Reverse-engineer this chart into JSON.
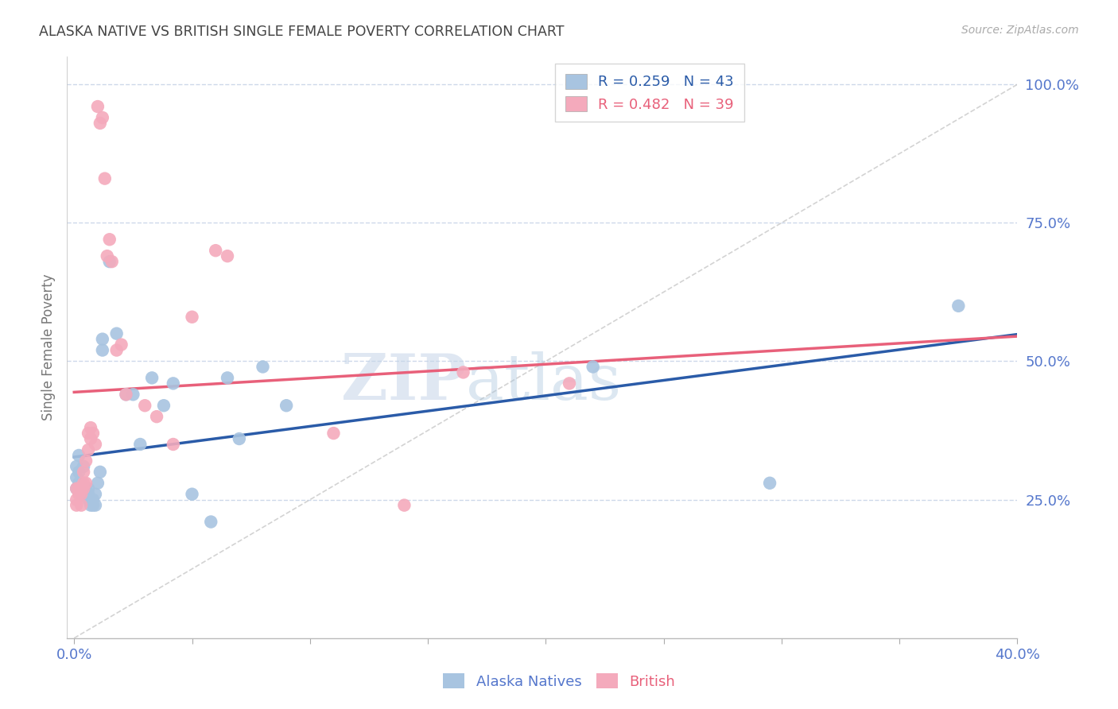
{
  "title": "ALASKA NATIVE VS BRITISH SINGLE FEMALE POVERTY CORRELATION CHART",
  "source": "Source: ZipAtlas.com",
  "ylabel": "Single Female Poverty",
  "xlim": [
    -0.003,
    0.4
  ],
  "ylim": [
    0.0,
    1.05
  ],
  "yticks": [
    0.25,
    0.5,
    0.75,
    1.0
  ],
  "ytick_labels": [
    "25.0%",
    "50.0%",
    "75.0%",
    "100.0%"
  ],
  "xticks": [
    0.0,
    0.05,
    0.1,
    0.15,
    0.2,
    0.25,
    0.3,
    0.35,
    0.4
  ],
  "xtick_labels": [
    "0.0%",
    "",
    "",
    "",
    "",
    "",
    "",
    "",
    "40.0%"
  ],
  "alaska_R": 0.259,
  "alaska_N": 43,
  "british_R": 0.482,
  "british_N": 39,
  "alaska_color": "#A8C4E0",
  "british_color": "#F4AABC",
  "alaska_line_color": "#2A5BA8",
  "british_line_color": "#E8607A",
  "ref_line_color": "#C8C8C8",
  "background_color": "#FFFFFF",
  "grid_color": "#CDD8EA",
  "axis_color": "#5577CC",
  "watermark_color": "#D0DFF0",
  "alaska_x": [
    0.001,
    0.001,
    0.001,
    0.002,
    0.002,
    0.002,
    0.003,
    0.003,
    0.003,
    0.004,
    0.004,
    0.005,
    0.005,
    0.006,
    0.006,
    0.006,
    0.007,
    0.007,
    0.008,
    0.008,
    0.009,
    0.009,
    0.01,
    0.011,
    0.012,
    0.012,
    0.015,
    0.018,
    0.022,
    0.025,
    0.028,
    0.033,
    0.038,
    0.042,
    0.05,
    0.058,
    0.065,
    0.07,
    0.08,
    0.09,
    0.22,
    0.295,
    0.375
  ],
  "alaska_y": [
    0.31,
    0.29,
    0.27,
    0.33,
    0.3,
    0.28,
    0.28,
    0.27,
    0.26,
    0.31,
    0.27,
    0.27,
    0.26,
    0.26,
    0.25,
    0.27,
    0.25,
    0.24,
    0.25,
    0.24,
    0.26,
    0.24,
    0.28,
    0.3,
    0.52,
    0.54,
    0.68,
    0.55,
    0.44,
    0.44,
    0.35,
    0.47,
    0.42,
    0.46,
    0.26,
    0.21,
    0.47,
    0.36,
    0.49,
    0.42,
    0.49,
    0.28,
    0.6
  ],
  "british_x": [
    0.001,
    0.001,
    0.001,
    0.002,
    0.002,
    0.003,
    0.003,
    0.003,
    0.004,
    0.004,
    0.004,
    0.005,
    0.005,
    0.006,
    0.006,
    0.007,
    0.007,
    0.008,
    0.009,
    0.01,
    0.011,
    0.012,
    0.013,
    0.014,
    0.015,
    0.016,
    0.018,
    0.02,
    0.022,
    0.03,
    0.035,
    0.042,
    0.05,
    0.06,
    0.065,
    0.11,
    0.14,
    0.165,
    0.21
  ],
  "british_y": [
    0.27,
    0.25,
    0.24,
    0.26,
    0.27,
    0.26,
    0.24,
    0.27,
    0.28,
    0.27,
    0.3,
    0.28,
    0.32,
    0.34,
    0.37,
    0.38,
    0.36,
    0.37,
    0.35,
    0.96,
    0.93,
    0.94,
    0.83,
    0.69,
    0.72,
    0.68,
    0.52,
    0.53,
    0.44,
    0.42,
    0.4,
    0.35,
    0.58,
    0.7,
    0.69,
    0.37,
    0.24,
    0.48,
    0.46
  ]
}
